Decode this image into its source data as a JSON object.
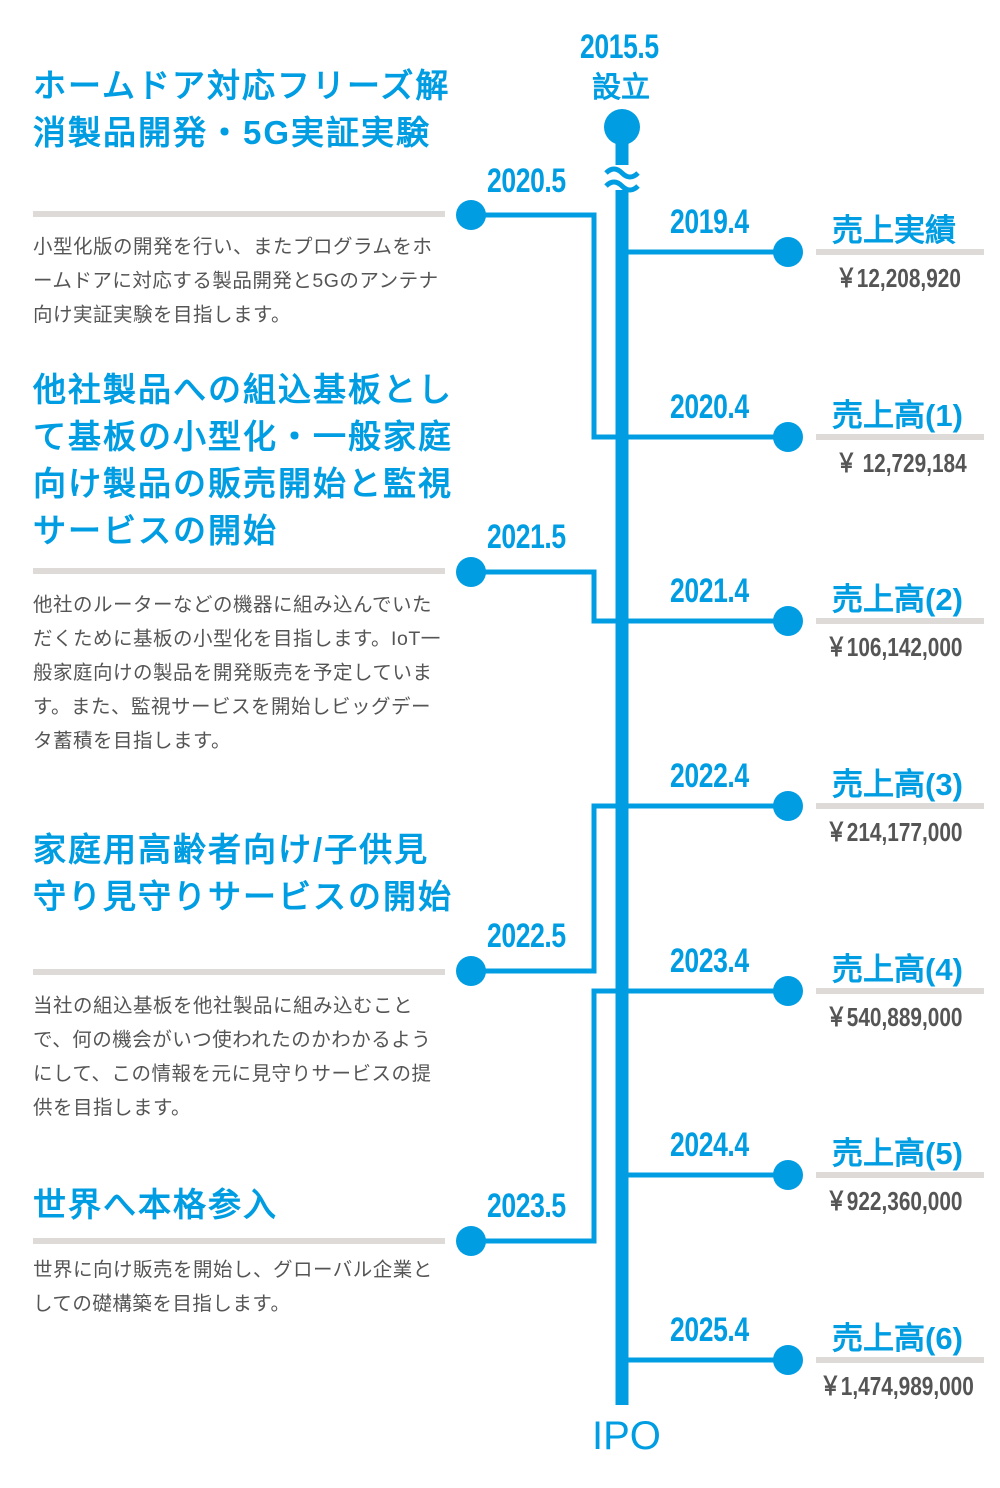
{
  "colors": {
    "accent": "#009de2",
    "divider": "#dedad7",
    "text": "#555555"
  },
  "start": {
    "year": "2015.5",
    "label": "設立"
  },
  "end": {
    "label": "IPO"
  },
  "left_events": [
    {
      "year": "2020.5",
      "title": "ホームドア対応フリーズ解消製品開発・5G実証実験",
      "body": "小型化版の開発を行い、またプログラムをホームドアに対応する製品開発と5Gのアンテナ向け実証実験を目指します。"
    },
    {
      "year": "2021.5",
      "title": "他社製品への組込基板として基板の小型化・一般家庭向け製品の販売開始と監視サービスの開始",
      "body": "他社のルーターなどの機器に組み込んでいただくために基板の小型化を目指します。IoT一般家庭向けの製品を開発販売を予定しています。また、監視サービスを開始しビッグデータ蓄積を目指します。"
    },
    {
      "year": "2022.5",
      "title": "家庭用高齢者向け/子供見守り見守りサービスの開始",
      "body": "当社の組込基板を他社製品に組み込むことで、何の機会がいつ使われたのかわかるようにして、この情報を元に見守りサービスの提供を目指します。"
    },
    {
      "year": "2023.5",
      "title": "世界へ本格参入",
      "body": "世界に向け販売を開始し、グローバル企業としての礎構築を目指します。"
    }
  ],
  "right_events": [
    {
      "year": "2019.4",
      "title": "売上実績",
      "amount": "￥12,208,920"
    },
    {
      "year": "2020.4",
      "title": "売上高(1)",
      "amount": "￥ 12,729,184"
    },
    {
      "year": "2021.4",
      "title": "売上高(2)",
      "amount": "￥106,142,000"
    },
    {
      "year": "2022.4",
      "title": "売上高(3)",
      "amount": "￥214,177,000"
    },
    {
      "year": "2023.4",
      "title": "売上高(4)",
      "amount": "￥540,889,000"
    },
    {
      "year": "2024.4",
      "title": "売上高(5)",
      "amount": "￥922,360,000"
    },
    {
      "year": "2025.4",
      "title": "売上高(6)",
      "amount": "￥1,474,989,000"
    }
  ]
}
